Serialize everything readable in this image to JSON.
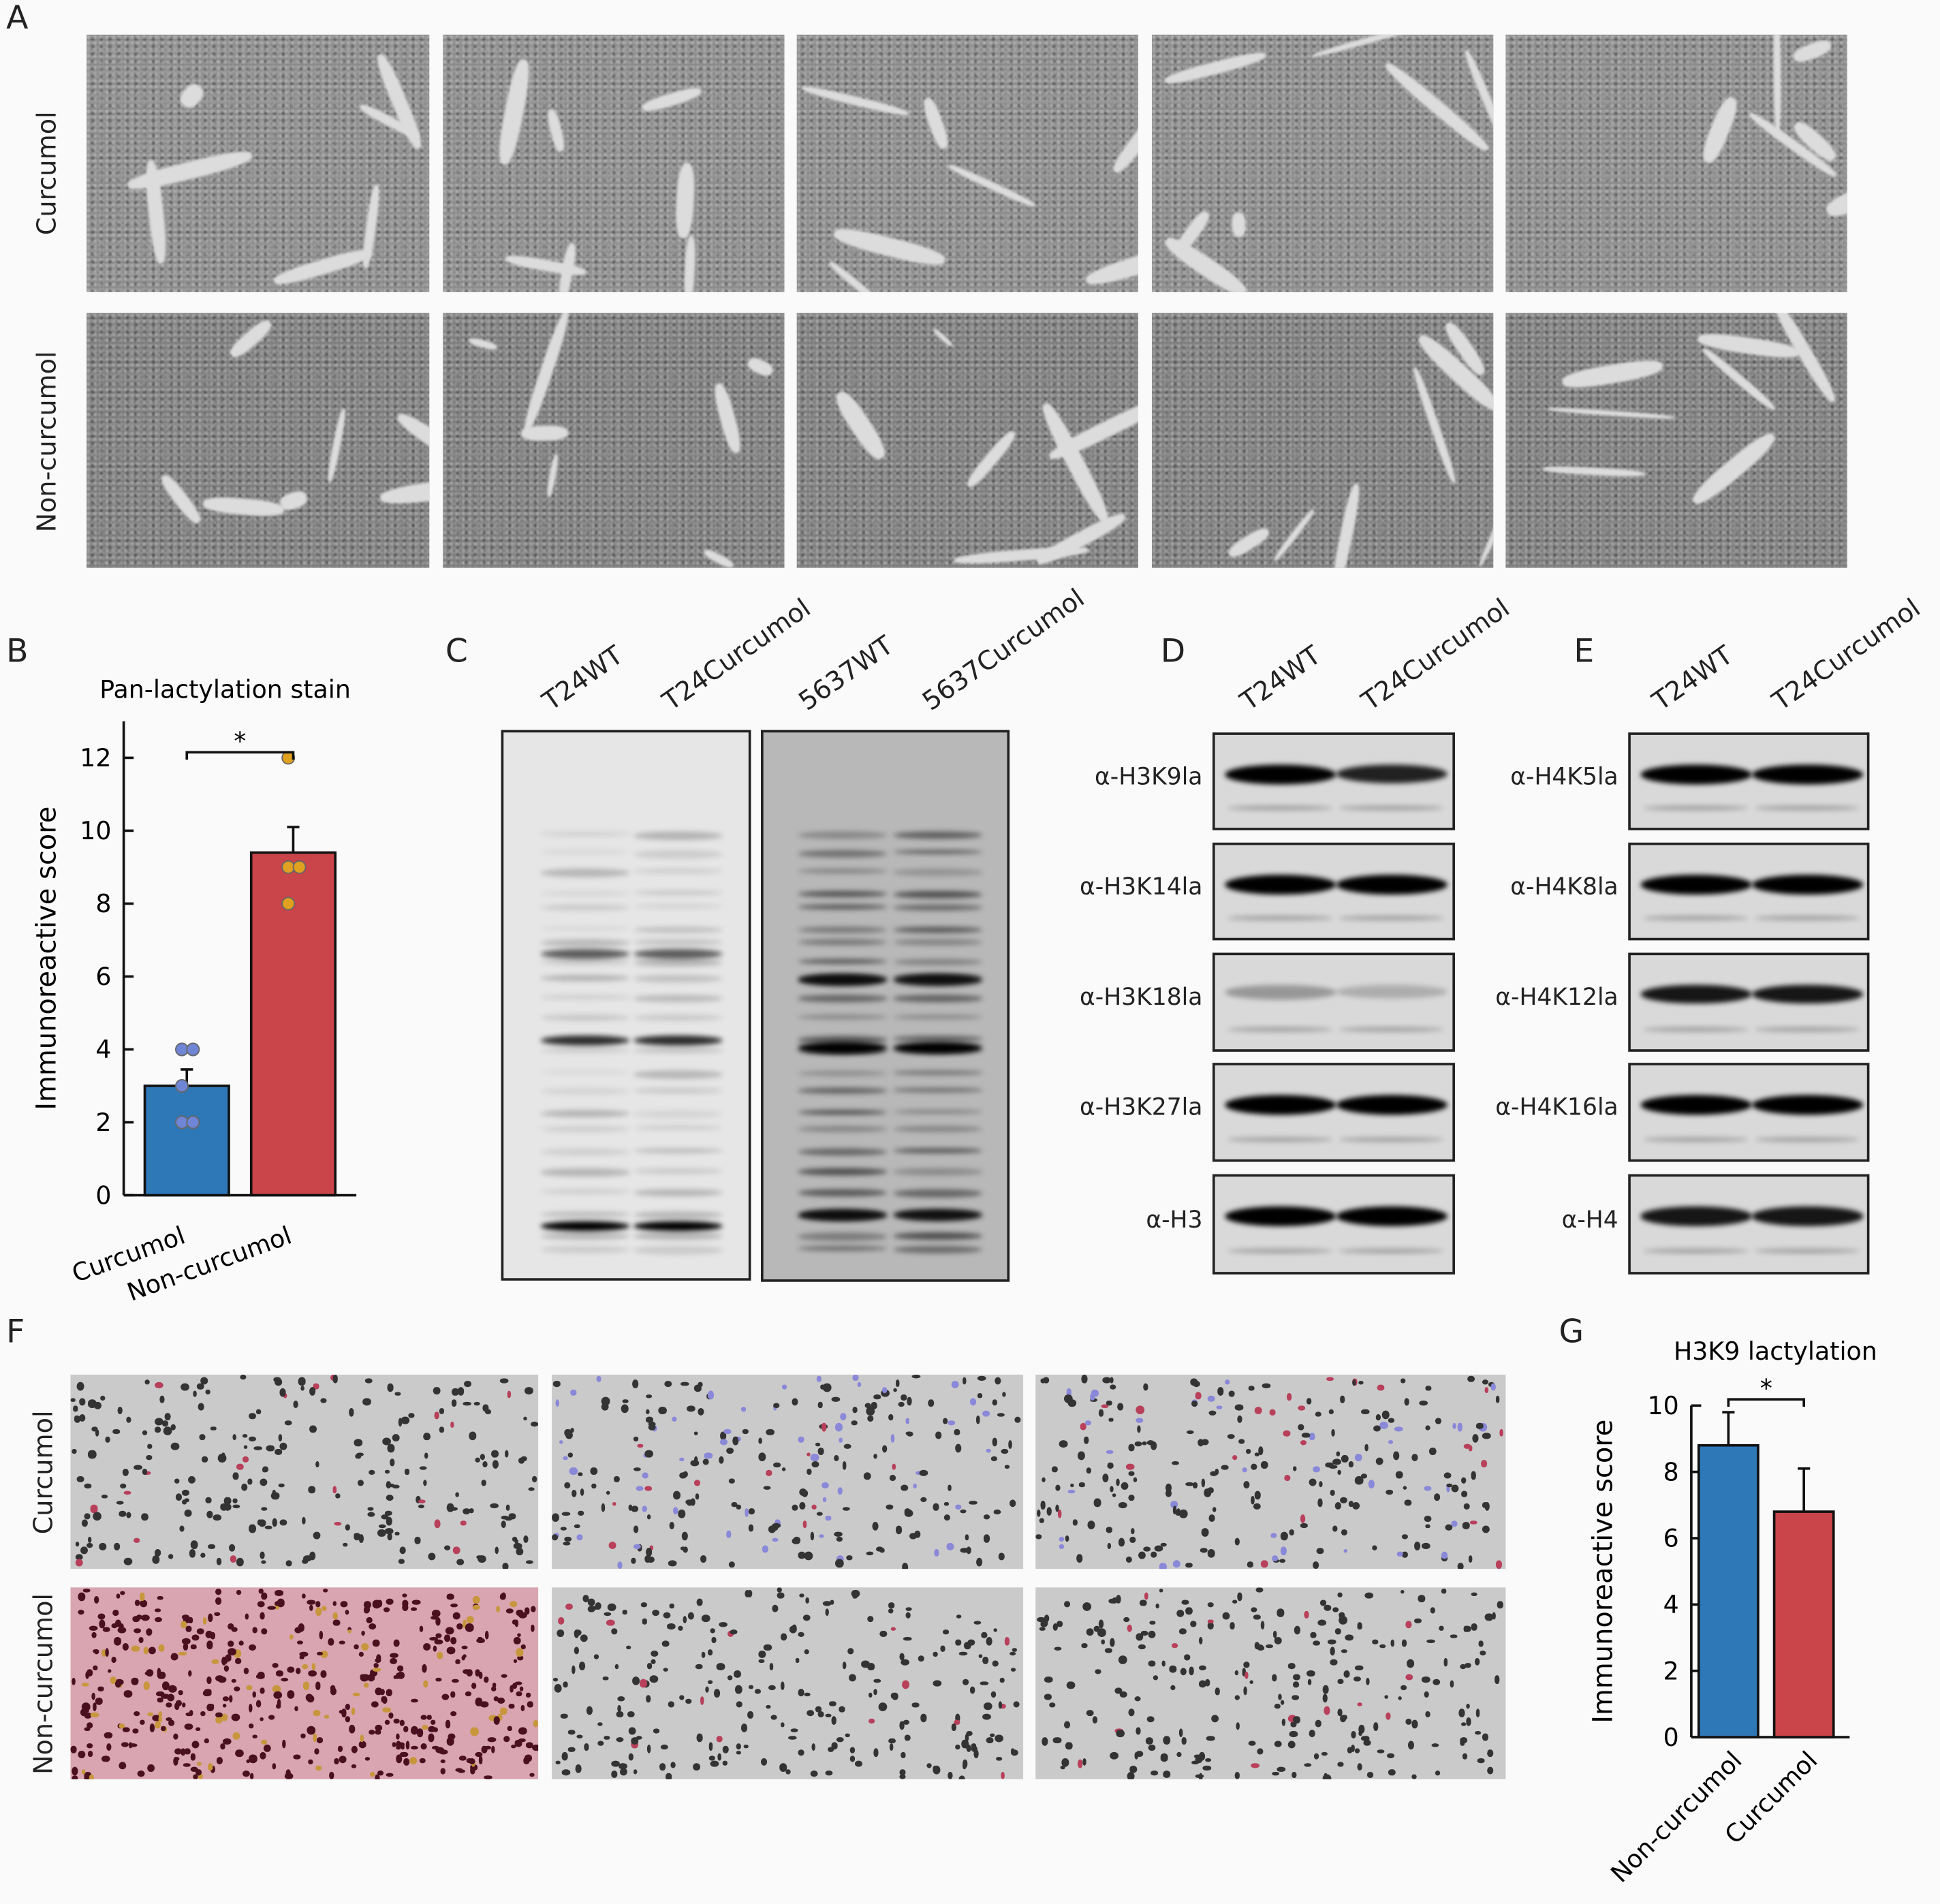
{
  "panels": {
    "A": "A",
    "B": "B",
    "C": "C",
    "D": "D",
    "E": "E",
    "F": "F",
    "G": "G"
  },
  "panel_a": {
    "row_labels": [
      "Curcumol",
      "Non-curcumol"
    ]
  },
  "panel_c": {
    "lanes": [
      "T24WT",
      "T24Curcumol",
      "5637WT",
      "5637Curcumol"
    ]
  },
  "panel_d": {
    "lanes": [
      "T24WT",
      "T24Curcumol"
    ],
    "antibodies": [
      "α-H3K9la",
      "α-H3K14la",
      "α-H3K18la",
      "α-H3K27la",
      "α-H3"
    ]
  },
  "panel_e": {
    "lanes": [
      "T24WT",
      "T24Curcumol"
    ],
    "antibodies": [
      "α-H4K5la",
      "α-H4K8la",
      "α-H4K12la",
      "α-H4K16la",
      "α-H4"
    ]
  },
  "panel_f": {
    "row_labels": [
      "Curcumol",
      "Non-curcumol"
    ]
  },
  "chart_data": [
    {
      "type": "bar",
      "title": "Pan-lactylation stain",
      "xlabel": "",
      "ylabel": "Immunoreactive score",
      "categories": [
        "Curcumol",
        "Non-curcumol"
      ],
      "values": [
        3.0,
        9.4
      ],
      "error_upper": [
        3.45,
        10.1
      ],
      "points": [
        [
          4,
          4,
          3,
          2,
          2
        ],
        [
          12,
          9,
          9,
          8
        ]
      ],
      "colors": [
        "#2f78b7",
        "#c9454a"
      ],
      "point_colors": [
        "#6f86d6",
        "#e0a020"
      ],
      "yticks": [
        0,
        2,
        4,
        6,
        8,
        10,
        12
      ],
      "ylim": [
        0,
        13
      ],
      "significance": "*",
      "grid": false
    },
    {
      "type": "bar",
      "title": "H3K9 lactylation",
      "xlabel": "",
      "ylabel": "Immunoreactive score",
      "categories": [
        "Non-curcumol",
        "Curcumol"
      ],
      "values": [
        8.8,
        6.8
      ],
      "error_upper": [
        9.8,
        8.1
      ],
      "colors": [
        "#2f78b7",
        "#c9454a"
      ],
      "yticks": [
        0,
        2,
        4,
        6,
        8,
        10
      ],
      "ylim": [
        0,
        10
      ],
      "significance": "*",
      "grid": false
    }
  ]
}
